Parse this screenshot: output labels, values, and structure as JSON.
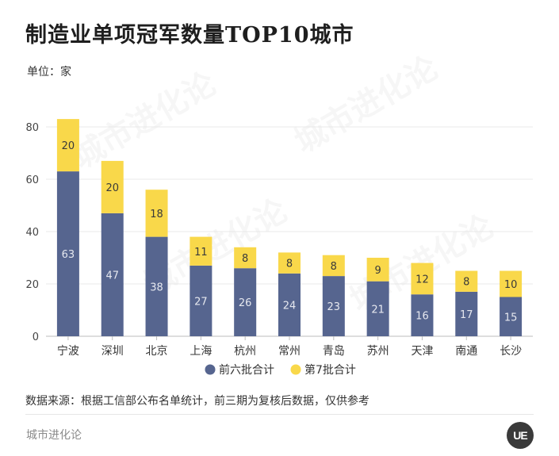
{
  "title": "制造业单项冠军数量TOP10城市",
  "unit": "单位：家",
  "source": "数据来源：根据工信部公布名单统计，前三期为复核后数据，仅供参考",
  "brand": "城市进化论",
  "logo_text": "UE",
  "watermark": "城市进化论",
  "chart_data": {
    "type": "bar",
    "stacked": true,
    "categories": [
      "宁波",
      "深圳",
      "北京",
      "上海",
      "杭州",
      "常州",
      "青岛",
      "苏州",
      "天津",
      "南通",
      "长沙"
    ],
    "series": [
      {
        "name": "前六批合计",
        "color": "#56658f",
        "values": [
          63,
          47,
          38,
          27,
          26,
          24,
          23,
          21,
          16,
          17,
          15
        ]
      },
      {
        "name": "第7批合计",
        "color": "#f9d84a",
        "values": [
          20,
          20,
          18,
          11,
          8,
          8,
          8,
          9,
          12,
          8,
          10
        ]
      }
    ],
    "yticks": [
      0,
      20,
      40,
      60,
      80
    ],
    "ylim": [
      0,
      80
    ],
    "grid": true,
    "legend_position": "bottom"
  }
}
